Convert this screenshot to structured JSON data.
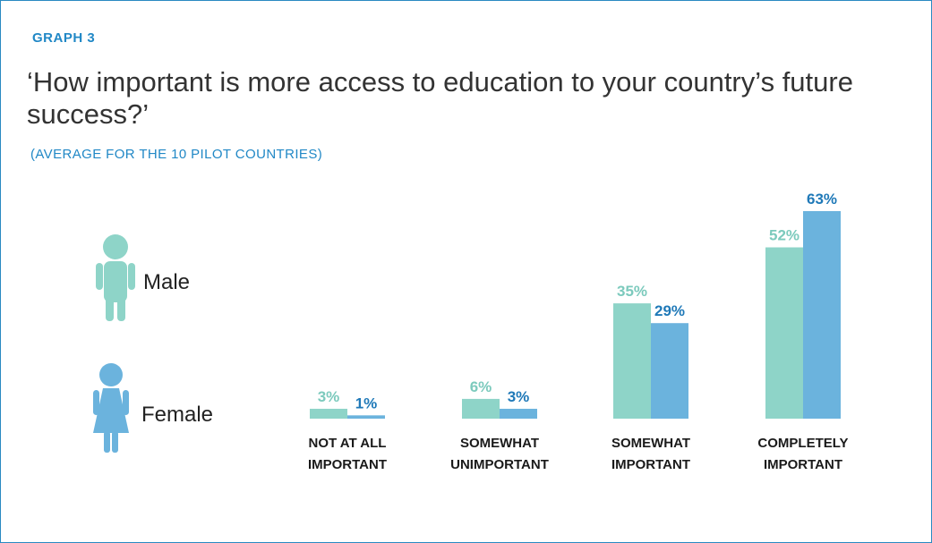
{
  "graph_tag": "GRAPH  3",
  "title": "‘How important is more access to education to your country’s future success?’",
  "subtitle": "(AVERAGE FOR THE 10 PILOT COUNTRIES)",
  "colors": {
    "male": "#8ed4c8",
    "female": "#6bb3dd",
    "male_text": "#7ccabd",
    "female_text": "#1f79b8"
  },
  "legend": [
    {
      "label": "Male",
      "icon": "male-person-icon"
    },
    {
      "label": "Female",
      "icon": "female-person-icon"
    }
  ],
  "chart_data": {
    "type": "bar",
    "categories": [
      [
        "NOT AT ALL",
        "IMPORTANT"
      ],
      [
        "SOMEWHAT",
        "UNIMPORTANT"
      ],
      [
        "SOMEWHAT",
        "IMPORTANT"
      ],
      [
        "COMPLETELY",
        "IMPORTANT"
      ]
    ],
    "series": [
      {
        "name": "Male",
        "values": [
          3,
          6,
          35,
          52
        ],
        "labels": [
          "3%",
          "6%",
          "35%",
          "52%"
        ]
      },
      {
        "name": "Female",
        "values": [
          1,
          3,
          29,
          63
        ],
        "labels": [
          "1%",
          "3%",
          "29%",
          "63%"
        ]
      }
    ],
    "title": "‘How important is more access to education to your country’s future success?’",
    "subtitle": "(AVERAGE FOR THE 10 PILOT COUNTRIES)",
    "ylim": [
      0,
      63
    ],
    "grid": false,
    "legend_position": "left"
  }
}
